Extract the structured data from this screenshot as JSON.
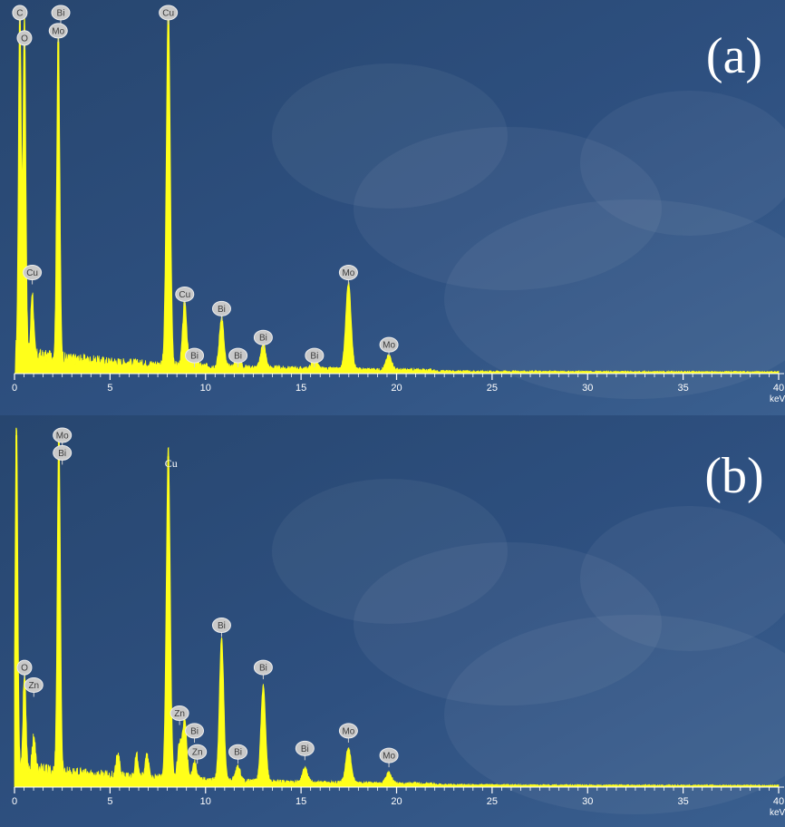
{
  "figure": {
    "colors": {
      "background": "#2e5080",
      "spectrum": "#ffff1a",
      "axis": "#ffffff",
      "badge": "#c9c9c9"
    }
  },
  "chart_data": [
    {
      "type": "area",
      "panel_label": "(a)",
      "xlabel": "keV",
      "xlim": [
        0,
        40
      ],
      "x_ticks": [
        0,
        5,
        10,
        15,
        20,
        25,
        30,
        35,
        40
      ],
      "ylim": [
        0,
        100
      ],
      "grid": false,
      "series": [
        {
          "x": [
            0.28,
            0.52,
            0.93,
            2.29,
            8.05,
            8.91,
            9.42,
            10.84,
            11.7,
            13.02,
            15.7,
            17.48,
            19.6
          ],
          "values": [
            100,
            95,
            18,
            92,
            100,
            18,
            4,
            14,
            4,
            7,
            3,
            24,
            4
          ]
        }
      ],
      "peak_labels": [
        {
          "text": "C",
          "x": 0.28,
          "y": 100
        },
        {
          "text": "O",
          "x": 0.52,
          "y": 93
        },
        {
          "text": "Bi",
          "x": 2.42,
          "y": 100
        },
        {
          "text": "Mo",
          "x": 2.29,
          "y": 95
        },
        {
          "text": "Cu",
          "x": 8.05,
          "y": 100
        },
        {
          "text": "Cu",
          "x": 0.93,
          "y": 28
        },
        {
          "text": "Cu",
          "x": 8.91,
          "y": 22
        },
        {
          "text": "Bi",
          "x": 9.42,
          "y": 5
        },
        {
          "text": "Bi",
          "x": 10.84,
          "y": 18
        },
        {
          "text": "Bi",
          "x": 11.7,
          "y": 5
        },
        {
          "text": "Bi",
          "x": 13.02,
          "y": 10
        },
        {
          "text": "Bi",
          "x": 15.7,
          "y": 5
        },
        {
          "text": "Mo",
          "x": 17.48,
          "y": 28
        },
        {
          "text": "Mo",
          "x": 19.6,
          "y": 8
        }
      ]
    },
    {
      "type": "area",
      "panel_label": "(b)",
      "xlabel": "keV",
      "xlim": [
        0,
        40
      ],
      "x_ticks": [
        0,
        5,
        10,
        15,
        20,
        25,
        30,
        35,
        40
      ],
      "ylim": [
        0,
        100
      ],
      "grid": false,
      "series": [
        {
          "x": [
            0.1,
            0.52,
            1.01,
            2.32,
            5.41,
            6.4,
            6.93,
            8.05,
            8.64,
            8.91,
            9.42,
            10.84,
            11.7,
            13.02,
            15.2,
            17.48,
            19.6
          ],
          "values": [
            100,
            28,
            10,
            99,
            6,
            6,
            6,
            94,
            10,
            17,
            5,
            41,
            4,
            27,
            4,
            10,
            3
          ]
        }
      ],
      "peak_labels": [
        {
          "text": "Mo",
          "x": 2.5,
          "y": 100
        },
        {
          "text": "Bi",
          "x": 2.5,
          "y": 95
        },
        {
          "text": "Cu",
          "x": 8.2,
          "y": 92,
          "plain": true
        },
        {
          "text": "O",
          "x": 0.52,
          "y": 34
        },
        {
          "text": "Zn",
          "x": 1.01,
          "y": 29
        },
        {
          "text": "Zn",
          "x": 8.64,
          "y": 21
        },
        {
          "text": "Bi",
          "x": 9.42,
          "y": 16
        },
        {
          "text": "Zn",
          "x": 9.57,
          "y": 10
        },
        {
          "text": "Bi",
          "x": 10.84,
          "y": 46
        },
        {
          "text": "Bi",
          "x": 11.7,
          "y": 10
        },
        {
          "text": "Bi",
          "x": 13.02,
          "y": 34
        },
        {
          "text": "Bi",
          "x": 15.2,
          "y": 11
        },
        {
          "text": "Mo",
          "x": 17.48,
          "y": 16
        },
        {
          "text": "Mo",
          "x": 19.6,
          "y": 9
        }
      ]
    }
  ]
}
